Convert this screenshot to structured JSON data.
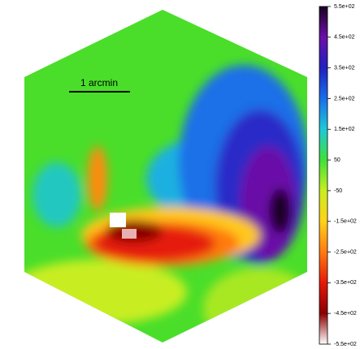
{
  "chart_data": {
    "type": "image",
    "annotation": "1 arcmin",
    "colormap": [
      "#ffffff",
      "#8b0000",
      "#e51a0a",
      "#ff7a10",
      "#ffd21a",
      "#c8ee20",
      "#3ee03a",
      "#1fc8d8",
      "#1a6fe8",
      "#2020c0",
      "#6a10a8",
      "#1a0020"
    ],
    "clim": [
      -550,
      550
    ],
    "cticks": [
      {
        "value": 550,
        "label": "5.5e+02"
      },
      {
        "value": 450,
        "label": "4.5e+02"
      },
      {
        "value": 350,
        "label": "3.5e+02"
      },
      {
        "value": 250,
        "label": "2.5e+02"
      },
      {
        "value": 150,
        "label": "1.5e+02"
      },
      50,
      -50,
      {
        "value": -150,
        "label": "-1.5e+02"
      },
      {
        "value": -250,
        "label": "-2.5e+02"
      },
      {
        "value": -350,
        "label": "-3.5e+02"
      },
      {
        "value": -450,
        "label": "-4.5e+02"
      },
      {
        "value": -550,
        "label": "-5.5e+02"
      }
    ]
  }
}
